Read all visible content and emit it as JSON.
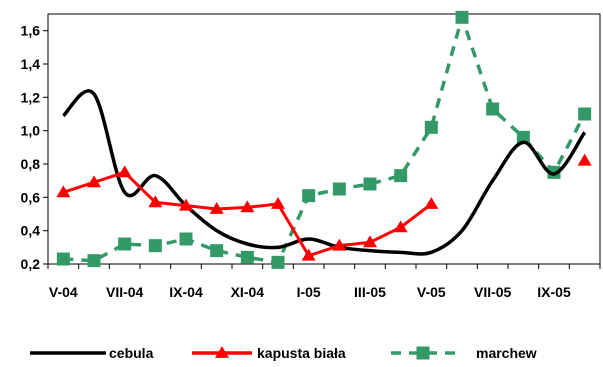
{
  "chart_data": {
    "type": "line",
    "title": "",
    "xlabel": "",
    "ylabel": "",
    "ylim": [
      0.2,
      1.7
    ],
    "y_ticks": [
      "0,2",
      "0,4",
      "0,6",
      "0,8",
      "1,0",
      "1,2",
      "1,4",
      "1,6"
    ],
    "y_tick_values": [
      0.2,
      0.4,
      0.6,
      0.8,
      1.0,
      1.2,
      1.4,
      1.6
    ],
    "x_tick_labels": [
      "V-04",
      "VII-04",
      "IX-04",
      "XI-04",
      "I-05",
      "III-05",
      "V-05",
      "VII-05",
      "IX-05"
    ],
    "categories": [
      "V-04",
      "VI-04",
      "VII-04",
      "VIII-04",
      "IX-04",
      "X-04",
      "XI-04",
      "XII-04",
      "I-05",
      "II-05",
      "III-05",
      "IV-05",
      "V-05",
      "VI-05",
      "VII-05",
      "VIII-05",
      "IX-05",
      "X-05"
    ],
    "grid": false,
    "legend": "bottom",
    "series": [
      {
        "name": "cebula",
        "color": "#000000",
        "style": "smooth-solid",
        "marker": "none",
        "values": [
          1.09,
          1.22,
          0.63,
          0.73,
          0.55,
          0.4,
          0.32,
          0.3,
          0.35,
          0.3,
          0.28,
          0.27,
          0.27,
          0.4,
          0.7,
          0.93,
          0.74,
          0.99
        ]
      },
      {
        "name": "kapusta biała",
        "color": "#ff0000",
        "style": "solid",
        "marker": "triangle",
        "values": [
          0.63,
          0.69,
          0.75,
          0.57,
          0.55,
          0.53,
          0.54,
          0.56,
          0.25,
          0.31,
          0.33,
          0.42,
          0.56,
          null,
          null,
          null,
          null,
          0.82
        ]
      },
      {
        "name": "marchew",
        "color": "#339966",
        "style": "dashed",
        "marker": "square",
        "values": [
          0.23,
          0.22,
          0.32,
          0.31,
          0.35,
          0.28,
          0.24,
          0.21,
          0.61,
          0.65,
          0.68,
          0.73,
          1.02,
          1.68,
          1.13,
          0.96,
          0.75,
          1.1
        ]
      }
    ]
  }
}
